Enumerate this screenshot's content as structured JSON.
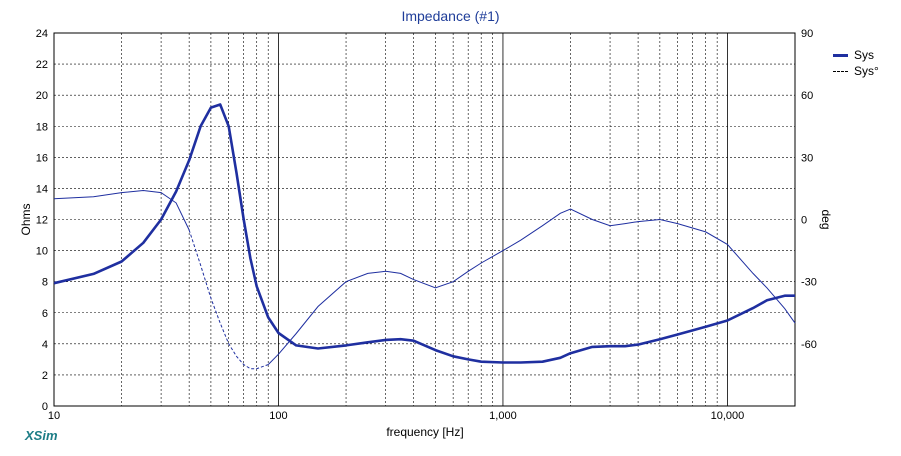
{
  "chart_data": {
    "type": "line",
    "title": "Impedance (#1)",
    "xlabel": "frequency [Hz]",
    "ylabel_left": "Ohms",
    "ylabel_right": "deg",
    "x_scale": "log",
    "xlim": [
      10,
      20000
    ],
    "ylim_left": [
      0,
      24
    ],
    "ylim_right": [
      -90,
      90
    ],
    "x_tick_labels": [
      "10",
      "100",
      "1,000",
      "10,000"
    ],
    "y_left_ticks": [
      0,
      2,
      4,
      6,
      8,
      10,
      12,
      14,
      16,
      18,
      20,
      22,
      24
    ],
    "y_right_ticks": [
      -60,
      -30,
      0,
      30,
      60,
      90
    ],
    "grid": true,
    "legend_position": "top-right",
    "colors": {
      "line": "#1f2fa0",
      "title": "#1f3d99",
      "grid": "#000000"
    },
    "series": [
      {
        "name": "Sys",
        "axis": "left",
        "style": "solid-thick",
        "x": [
          10,
          15,
          20,
          25,
          30,
          35,
          40,
          45,
          50,
          55,
          60,
          65,
          70,
          75,
          80,
          90,
          100,
          120,
          150,
          200,
          250,
          300,
          350,
          400,
          500,
          600,
          700,
          800,
          1000,
          1200,
          1500,
          1800,
          2000,
          2500,
          3000,
          3500,
          4000,
          5000,
          6000,
          8000,
          10000,
          13000,
          15000,
          18000,
          20000
        ],
        "y": [
          7.9,
          8.5,
          9.3,
          10.5,
          12.0,
          13.8,
          15.8,
          18.0,
          19.2,
          19.4,
          18.0,
          15.0,
          12.0,
          9.5,
          7.7,
          5.7,
          4.7,
          3.9,
          3.7,
          3.9,
          4.1,
          4.25,
          4.3,
          4.2,
          3.6,
          3.2,
          3.0,
          2.85,
          2.8,
          2.8,
          2.85,
          3.1,
          3.4,
          3.8,
          3.85,
          3.85,
          3.95,
          4.3,
          4.6,
          5.1,
          5.5,
          6.3,
          6.8,
          7.1,
          7.1
        ]
      },
      {
        "name": "Sys°",
        "axis": "right",
        "style": "dashed-then-thin",
        "x": [
          10,
          15,
          20,
          25,
          30,
          35,
          40,
          45,
          50,
          55,
          60,
          65,
          70,
          75,
          80,
          90,
          100,
          120,
          150,
          200,
          250,
          300,
          350,
          400,
          500,
          600,
          700,
          800,
          1000,
          1200,
          1500,
          1800,
          2000,
          2500,
          3000,
          3500,
          4000,
          5000,
          6000,
          8000,
          10000,
          13000,
          15000,
          18000,
          20000
        ],
        "y": [
          10,
          11,
          13,
          14,
          13,
          8,
          -5,
          -22,
          -38,
          -50,
          -60,
          -66,
          -70,
          -72,
          -72,
          -70,
          -65,
          -55,
          -42,
          -30,
          -26,
          -25,
          -26,
          -29,
          -33,
          -30,
          -25,
          -21,
          -15,
          -10,
          -3,
          3,
          5,
          0,
          -3,
          -2,
          -1,
          0,
          -2,
          -6,
          -12,
          -26,
          -33,
          -43,
          -50
        ]
      }
    ]
  }
}
